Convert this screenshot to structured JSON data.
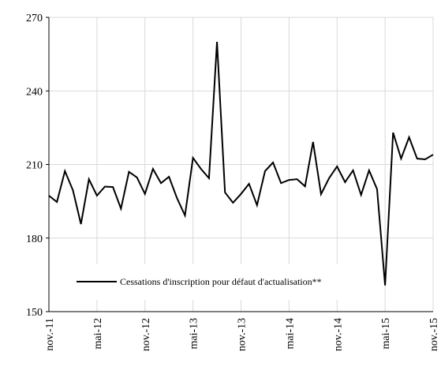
{
  "chart_data": {
    "type": "line",
    "categories": [
      "nov.-11",
      null,
      null,
      null,
      null,
      null,
      "mai-12",
      null,
      null,
      null,
      null,
      null,
      "nov.-12",
      null,
      null,
      null,
      null,
      null,
      "mai-13",
      null,
      null,
      null,
      null,
      null,
      "nov.-13",
      null,
      null,
      null,
      null,
      null,
      "mai-14",
      null,
      null,
      null,
      null,
      null,
      "nov.-14",
      null,
      null,
      null,
      null,
      null,
      "mai-15",
      null,
      null,
      null,
      null,
      null,
      "nov.-15"
    ],
    "series": [
      {
        "name": "Cessations d'inscription pour défaut d'actualisation**",
        "color": "#000000",
        "values": [
          197.3,
          194.7,
          207.3,
          199.5,
          185.7,
          204,
          197.3,
          201,
          200.8,
          192,
          207,
          204.7,
          198,
          208.2,
          202.4,
          205,
          196.3,
          189.2,
          212.7,
          208.2,
          204.4,
          260,
          198.6,
          194.4,
          198,
          202.1,
          193.4,
          207.3,
          210.8,
          202.4,
          203.7,
          204,
          201.1,
          219.2,
          197.9,
          204.4,
          209.2,
          202.8,
          207.6,
          197.6,
          207.6,
          199.9,
          160.7,
          223,
          212.4,
          221.1,
          212.4,
          212.1,
          214
        ]
      }
    ],
    "ylim": [
      150,
      270
    ],
    "yticks": [
      150,
      180,
      210,
      240,
      270
    ],
    "grid": true,
    "legend": "bottom"
  }
}
